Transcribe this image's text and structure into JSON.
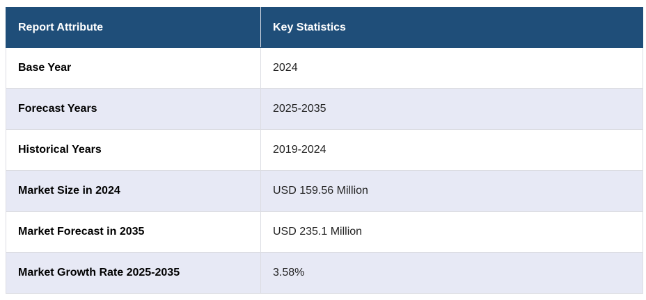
{
  "table": {
    "headers": [
      "Report Attribute",
      "Key Statistics"
    ],
    "rows": [
      {
        "attribute": "Base Year",
        "value": "2024"
      },
      {
        "attribute": "Forecast Years",
        "value": "2025-2035"
      },
      {
        "attribute": "Historical Years",
        "value": "2019-2024"
      },
      {
        "attribute": "Market Size in 2024",
        "value": "USD 159.56 Million"
      },
      {
        "attribute": "Market Forecast in 2035",
        "value": "USD 235.1 Million"
      },
      {
        "attribute": "Market Growth Rate 2025-2035",
        "value": "3.58%"
      }
    ]
  },
  "colors": {
    "header_bg": "#1f4e79",
    "header_text": "#ffffff",
    "row_alt_bg": "#e7e9f5",
    "row_bg": "#ffffff"
  }
}
